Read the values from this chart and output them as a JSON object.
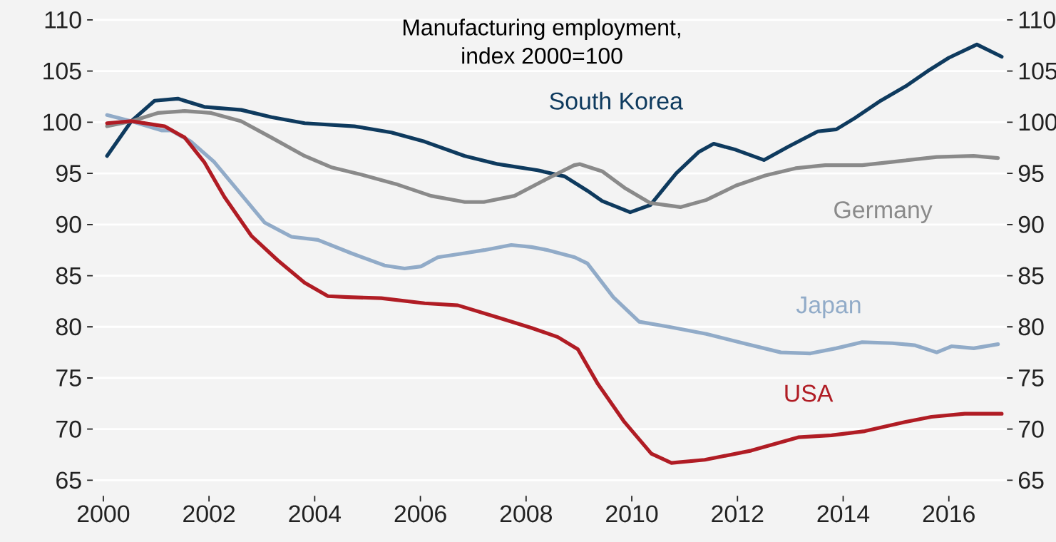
{
  "chart_data": {
    "type": "line",
    "title": "Manufacturing employment,",
    "subtitle": "index 2000=100",
    "xlim": [
      1999.8,
      2017.1
    ],
    "xticks": [
      2000,
      2002,
      2004,
      2006,
      2008,
      2010,
      2012,
      2014,
      2016
    ],
    "ylim": [
      65,
      110
    ],
    "yticks": [
      65,
      70,
      75,
      80,
      85,
      90,
      95,
      100,
      105,
      110
    ],
    "y2lim": [
      65,
      110
    ],
    "y2ticks": [
      65,
      70,
      75,
      80,
      85,
      90,
      95,
      100,
      105,
      110
    ],
    "grid": "y",
    "marker": "none",
    "line_style": "solid",
    "series": [
      {
        "name": "South Korea",
        "color": "#0e3a5e",
        "x": [
          2000.07,
          2000.53,
          2000.97,
          2001.41,
          2001.91,
          2002.61,
          2003.18,
          2003.81,
          2004.75,
          2005.45,
          2006.08,
          2006.84,
          2007.47,
          2008.22,
          2008.73,
          2009.16,
          2009.44,
          2009.97,
          2010.35,
          2010.84,
          2011.27,
          2011.55,
          2011.97,
          2012.5,
          2012.96,
          2013.52,
          2013.87,
          2014.22,
          2014.71,
          2015.21,
          2015.63,
          2016.0,
          2016.53,
          2017.0
        ],
        "values": [
          96.7,
          100.1,
          102.1,
          102.3,
          101.5,
          101.2,
          100.5,
          99.9,
          99.6,
          99.0,
          98.1,
          96.7,
          95.9,
          95.3,
          94.7,
          93.3,
          92.3,
          91.2,
          91.9,
          95.0,
          97.1,
          97.9,
          97.3,
          96.3,
          97.6,
          99.1,
          99.3,
          100.4,
          102.1,
          103.6,
          105.1,
          106.3,
          107.6,
          106.4
        ]
      },
      {
        "name": "Germany",
        "color": "#8a8a8a",
        "x": [
          2000.07,
          2000.53,
          2001.03,
          2001.54,
          2002.04,
          2002.61,
          2003.18,
          2003.81,
          2004.31,
          2004.94,
          2005.57,
          2006.2,
          2006.84,
          2007.2,
          2007.78,
          2008.41,
          2008.91,
          2009.02,
          2009.44,
          2009.86,
          2010.35,
          2010.92,
          2011.41,
          2011.97,
          2012.53,
          2013.1,
          2013.66,
          2014.36,
          2015.07,
          2015.77,
          2016.47,
          2016.93
        ],
        "values": [
          99.6,
          100.1,
          100.9,
          101.1,
          100.9,
          100.1,
          98.5,
          96.7,
          95.6,
          94.8,
          93.9,
          92.8,
          92.2,
          92.2,
          92.8,
          94.5,
          95.8,
          95.9,
          95.2,
          93.6,
          92.1,
          91.7,
          92.4,
          93.8,
          94.8,
          95.5,
          95.8,
          95.8,
          96.2,
          96.6,
          96.7,
          96.5
        ]
      },
      {
        "name": "Japan",
        "color": "#91abc8",
        "x": [
          2000.07,
          2000.53,
          2001.1,
          2001.28,
          2001.66,
          2002.1,
          2002.55,
          2003.05,
          2003.56,
          2004.06,
          2004.69,
          2005.32,
          2005.7,
          2006.01,
          2006.33,
          2006.84,
          2007.21,
          2007.72,
          2008.1,
          2008.41,
          2008.92,
          2009.16,
          2009.65,
          2010.14,
          2010.7,
          2011.41,
          2012.11,
          2012.82,
          2013.38,
          2013.87,
          2014.36,
          2014.93,
          2015.35,
          2015.77,
          2016.05,
          2016.47,
          2016.93
        ],
        "values": [
          100.7,
          100.1,
          99.2,
          99.2,
          98.1,
          96.1,
          93.3,
          90.2,
          88.8,
          88.5,
          87.2,
          86.0,
          85.7,
          85.9,
          86.8,
          87.2,
          87.5,
          88.0,
          87.8,
          87.5,
          86.8,
          86.2,
          82.9,
          80.5,
          80.0,
          79.3,
          78.4,
          77.5,
          77.4,
          77.9,
          78.5,
          78.4,
          78.2,
          77.5,
          78.1,
          77.9,
          78.3
        ]
      },
      {
        "name": "USA",
        "color": "#b01c24",
        "x": [
          2000.07,
          2000.53,
          2001.16,
          2001.54,
          2001.91,
          2002.29,
          2002.8,
          2003.3,
          2003.81,
          2004.25,
          2004.63,
          2005.26,
          2006.08,
          2006.71,
          2007.47,
          2008.1,
          2008.6,
          2008.98,
          2009.36,
          2009.86,
          2010.37,
          2010.75,
          2011.38,
          2012.26,
          2013.15,
          2013.78,
          2014.41,
          2015.17,
          2015.67,
          2016.3,
          2017.0
        ],
        "values": [
          99.9,
          100.1,
          99.6,
          98.5,
          96.1,
          92.7,
          88.9,
          86.5,
          84.3,
          83.0,
          82.9,
          82.8,
          82.3,
          82.1,
          80.9,
          79.9,
          79.0,
          77.8,
          74.4,
          70.7,
          67.6,
          66.7,
          67.0,
          67.9,
          69.2,
          69.4,
          69.8,
          70.7,
          71.2,
          71.5,
          71.5
        ]
      }
    ]
  }
}
